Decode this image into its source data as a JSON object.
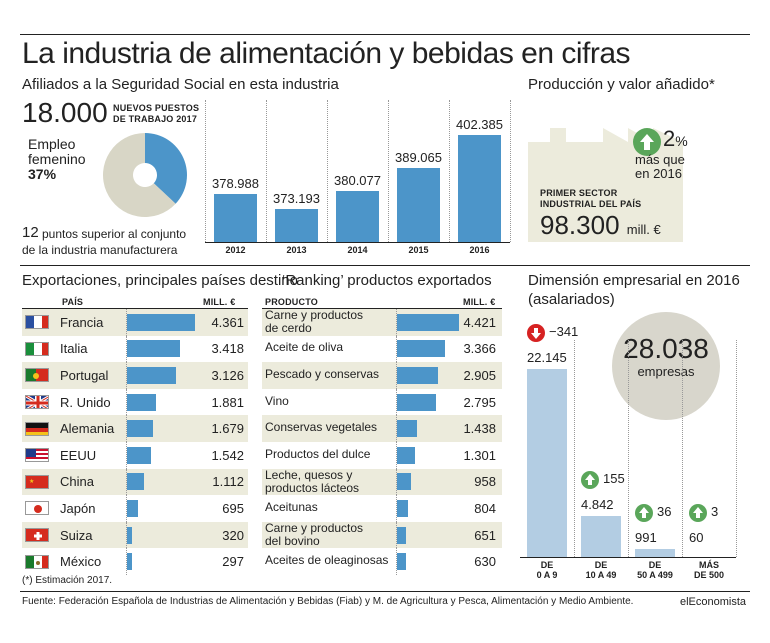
{
  "title": "La industria de alimentación y bebidas en cifras",
  "afiliados": {
    "heading": "Afiliados a la Seguridad Social en esta industria",
    "big_number": "18.000",
    "new_jobs_label_1": "NUEVOS PUESTOS",
    "new_jobs_label_2": "DE TRABAJO 2017",
    "donut_label_1": "Empleo",
    "donut_label_2": "femenino",
    "donut_pct": "37%",
    "note_num": "12",
    "note_1": "puntos superior al conjunto",
    "note_2": "de la industria manufacturera"
  },
  "produccion": {
    "heading": "Producción y valor añadido*",
    "pct": "2",
    "pct_sign": "%",
    "more_1": "más que",
    "more_2": "en 2016",
    "first_1": "PRIMER SECTOR",
    "first_2": "INDUSTRIAL DEL PAÍS",
    "value": "98.300",
    "unit": "mill. €"
  },
  "export_countries": {
    "heading": "Exportaciones, principales países destino",
    "col_country": "PAÍS",
    "col_value": "MILL. €"
  },
  "export_products": {
    "heading": "‘Ranking’ productos exportados",
    "col_product": "PRODUCTO",
    "col_value": "MILL. €"
  },
  "dimension": {
    "heading_1": "Dimensión empresarial en 2016",
    "heading_2": "(asalariados)",
    "total": "28.038",
    "total_label": "empresas"
  },
  "footer": {
    "note": "(*) Estimación 2017.",
    "source": "Fuente: Federación Española de Industrias de Alimentación y Bebidas (Fiab) y M. de Agricultura y Pesca, Alimentación y Medio Ambiente.",
    "brand": "elEconomista"
  },
  "chart_data": [
    {
      "type": "bar",
      "categories": [
        "2012",
        "2013",
        "2014",
        "2015",
        "2016"
      ],
      "values": [
        378988,
        373193,
        380077,
        389065,
        402385
      ],
      "labels": [
        "378.988",
        "373.193",
        "380.077",
        "389.065",
        "402.385"
      ],
      "color": "#4c95c9"
    },
    {
      "type": "pie",
      "categories": [
        "Empleo femenino",
        "Resto"
      ],
      "values": [
        37,
        63
      ],
      "colors": [
        "#4c95c9",
        "#d8d6c6"
      ]
    },
    {
      "type": "bar",
      "categories": [
        "Francia",
        "Italia",
        "Portugal",
        "R. Unido",
        "Alemania",
        "EEUU",
        "China",
        "Japón",
        "Suiza",
        "México"
      ],
      "values": [
        4361,
        3418,
        3126,
        1881,
        1679,
        1542,
        1112,
        695,
        320,
        297
      ],
      "labels": [
        "4.361",
        "3.418",
        "3.126",
        "1.881",
        "1.679",
        "1.542",
        "1.112",
        "695",
        "320",
        "297"
      ],
      "flags": [
        "france",
        "italy",
        "portugal",
        "uk",
        "germany",
        "usa",
        "china",
        "japan",
        "switzerland",
        "mexico"
      ]
    },
    {
      "type": "bar",
      "categories": [
        "Carne y productos de cerdo",
        "Aceite de oliva",
        "Pescado y conservas",
        "Vino",
        "Conservas vegetales",
        "Productos del dulce",
        "Leche, quesos y productos lácteos",
        "Aceitunas",
        "Carne y productos del bovino",
        "Aceites de oleaginosas"
      ],
      "lines": [
        [
          "Carne y productos",
          "de cerdo"
        ],
        [
          "Aceite de oliva"
        ],
        [
          "Pescado y conservas"
        ],
        [
          "Vino"
        ],
        [
          "Conservas vegetales"
        ],
        [
          "Productos del dulce"
        ],
        [
          "Leche, quesos y",
          "productos lácteos"
        ],
        [
          "Aceitunas"
        ],
        [
          "Carne y productos",
          "del bovino"
        ],
        [
          "Aceites de oleaginosas"
        ]
      ],
      "values": [
        4421,
        3366,
        2905,
        2795,
        1438,
        1301,
        958,
        804,
        651,
        630
      ],
      "labels": [
        "4.421",
        "3.366",
        "2.905",
        "2.795",
        "1.438",
        "1.301",
        "958",
        "804",
        "651",
        "630"
      ]
    },
    {
      "type": "bar",
      "categories": [
        "DE 0 A 9",
        "DE 10 A 49",
        "DE 50 A 499",
        "MÁS DE 500"
      ],
      "cat_lines": [
        [
          "DE",
          "0 A 9"
        ],
        [
          "DE",
          "10 A 49"
        ],
        [
          "DE",
          "50 A 499"
        ],
        [
          "MÁS",
          "DE 500"
        ]
      ],
      "values": [
        22145,
        4842,
        991,
        60
      ],
      "labels": [
        "22.145",
        "4.842",
        "991",
        "60"
      ],
      "changes": [
        "−341",
        "155",
        "36",
        "3"
      ],
      "change_dir": [
        "down",
        "up",
        "up",
        "up"
      ],
      "color": "#b3cde3"
    }
  ]
}
